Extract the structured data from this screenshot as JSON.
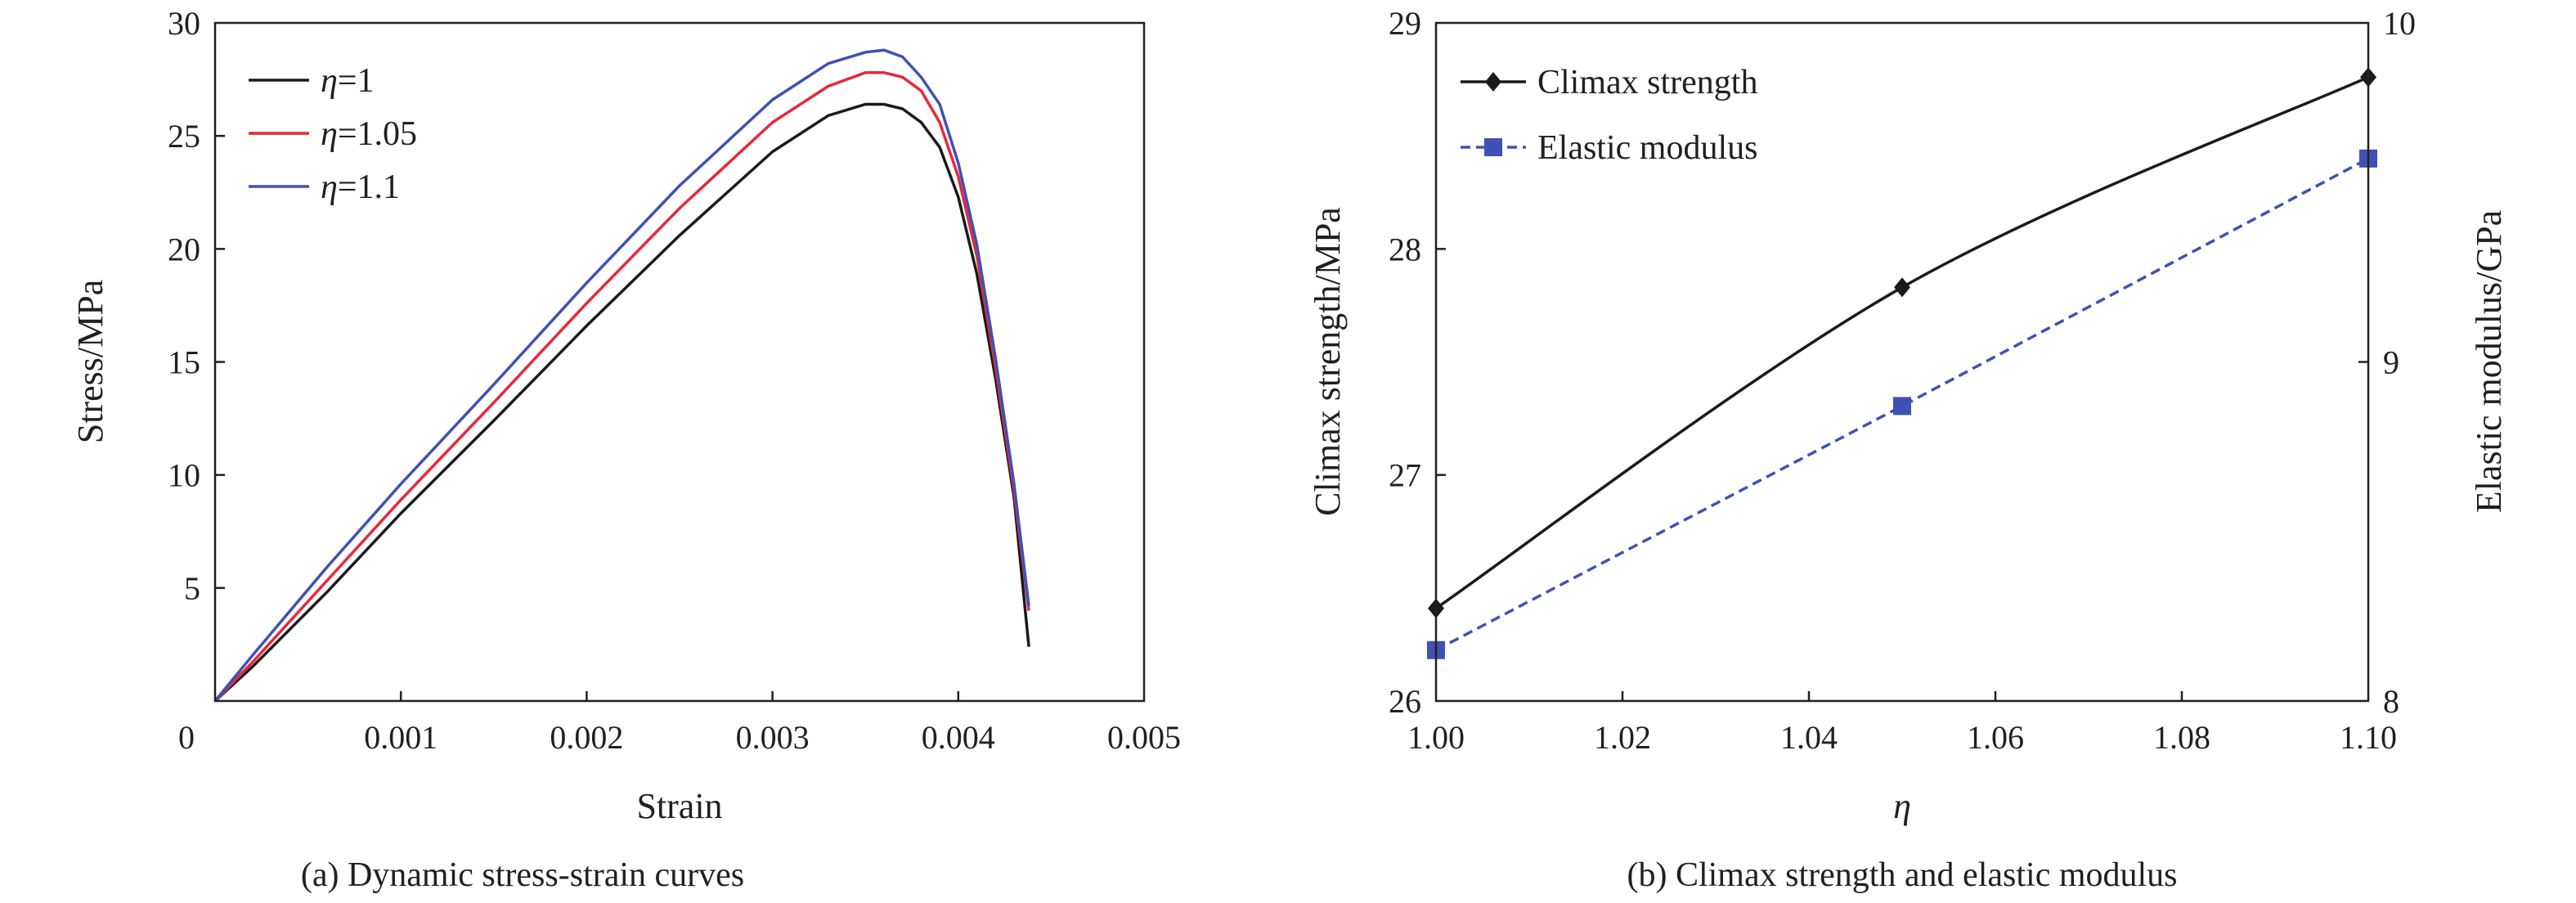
{
  "chart_data": [
    {
      "type": "line",
      "caption": "(a) Dynamic stress-strain curves",
      "xlabel": "Strain",
      "ylabel": "Stress/MPa",
      "xlim": [
        0,
        0.005
      ],
      "ylim": [
        0,
        30
      ],
      "x_ticks": [
        "0",
        "0.001",
        "0.002",
        "0.003",
        "0.004",
        "0.005"
      ],
      "y_ticks": [
        "5",
        "10",
        "15",
        "20",
        "25",
        "30"
      ],
      "legend_position": "top-left",
      "series": [
        {
          "name": "η=1",
          "color": "#1a1a1a",
          "points": [
            [
              0,
              0
            ],
            [
              0.0002,
              1.5
            ],
            [
              0.0006,
              4.8
            ],
            [
              0.001,
              8.3
            ],
            [
              0.0015,
              12.4
            ],
            [
              0.002,
              16.6
            ],
            [
              0.0025,
              20.6
            ],
            [
              0.003,
              24.3
            ],
            [
              0.0033,
              25.9
            ],
            [
              0.0035,
              26.4
            ],
            [
              0.0036,
              26.4
            ],
            [
              0.0037,
              26.2
            ],
            [
              0.0038,
              25.6
            ],
            [
              0.0039,
              24.5
            ],
            [
              0.004,
              22.3
            ],
            [
              0.0041,
              18.9
            ],
            [
              0.0042,
              14.3
            ],
            [
              0.0043,
              9.0
            ],
            [
              0.00438,
              2.4
            ]
          ]
        },
        {
          "name": "η=1.05",
          "color": "#e8283c",
          "points": [
            [
              0,
              0
            ],
            [
              0.0002,
              1.7
            ],
            [
              0.0006,
              5.3
            ],
            [
              0.001,
              8.9
            ],
            [
              0.0015,
              13.2
            ],
            [
              0.002,
              17.6
            ],
            [
              0.0025,
              21.8
            ],
            [
              0.003,
              25.6
            ],
            [
              0.0033,
              27.2
            ],
            [
              0.0035,
              27.8
            ],
            [
              0.0036,
              27.8
            ],
            [
              0.0037,
              27.6
            ],
            [
              0.0038,
              27.0
            ],
            [
              0.0039,
              25.6
            ],
            [
              0.004,
              23.2
            ],
            [
              0.0041,
              19.7
            ],
            [
              0.0042,
              14.8
            ],
            [
              0.0043,
              9.3
            ],
            [
              0.00438,
              4.0
            ]
          ]
        },
        {
          "name": "η=1.1",
          "color": "#3f51b5",
          "points": [
            [
              0,
              0
            ],
            [
              0.0002,
              2.0
            ],
            [
              0.0006,
              5.9
            ],
            [
              0.001,
              9.6
            ],
            [
              0.0015,
              14.0
            ],
            [
              0.002,
              18.5
            ],
            [
              0.0025,
              22.8
            ],
            [
              0.003,
              26.6
            ],
            [
              0.0033,
              28.2
            ],
            [
              0.0035,
              28.7
            ],
            [
              0.0036,
              28.8
            ],
            [
              0.0037,
              28.5
            ],
            [
              0.0038,
              27.6
            ],
            [
              0.0039,
              26.4
            ],
            [
              0.004,
              23.8
            ],
            [
              0.0041,
              20.2
            ],
            [
              0.0042,
              15.2
            ],
            [
              0.0043,
              9.6
            ],
            [
              0.00438,
              4.2
            ]
          ]
        }
      ]
    },
    {
      "type": "line",
      "caption": "(b) Climax strength and elastic modulus",
      "xlabel": "η",
      "ylabel": "Climax strength/MPa",
      "ylabel_right": "Elastic modulus/GPa",
      "xlim": [
        1.0,
        1.1
      ],
      "ylim": [
        26,
        29
      ],
      "ylim_right": [
        8,
        10
      ],
      "x_ticks": [
        "1.00",
        "1.02",
        "1.04",
        "1.06",
        "1.08",
        "1.10"
      ],
      "y_ticks": [
        "26",
        "27",
        "28",
        "29"
      ],
      "y_ticks_right": [
        "8",
        "9",
        "10"
      ],
      "legend_position": "top-left",
      "series": [
        {
          "name": "Climax strength",
          "axis": "left",
          "color": "#1a1a1a",
          "marker": "diamond",
          "x": [
            1.0,
            1.05,
            1.1
          ],
          "y": [
            26.41,
            27.83,
            28.76
          ]
        },
        {
          "name": "Elastic modulus",
          "axis": "right",
          "color": "#3f51b5",
          "marker": "square",
          "dashed": true,
          "x": [
            1.0,
            1.05,
            1.1
          ],
          "y": [
            8.15,
            8.87,
            9.6
          ]
        }
      ]
    }
  ]
}
